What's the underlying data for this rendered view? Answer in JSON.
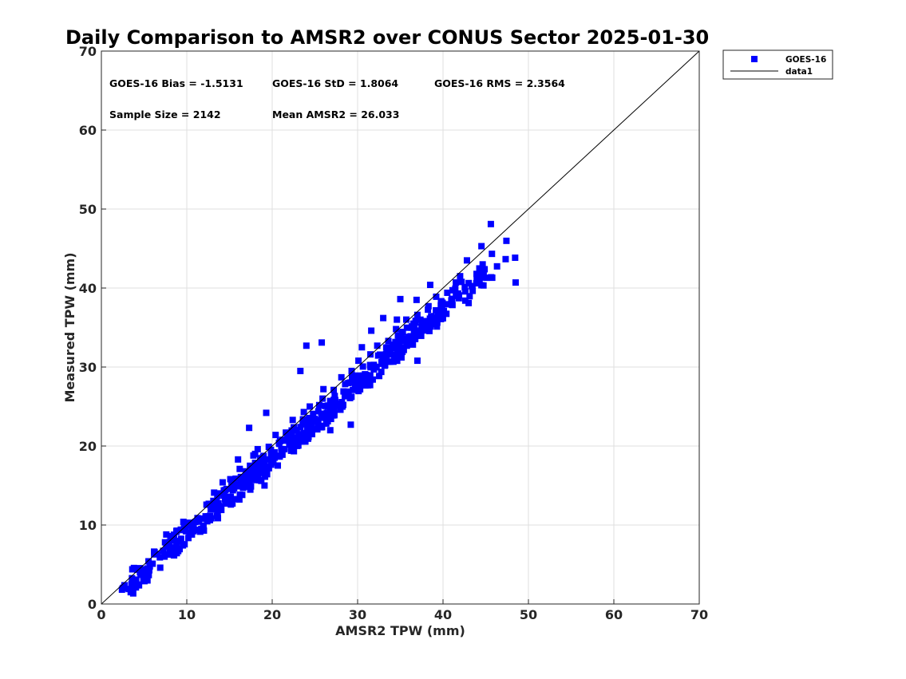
{
  "chart_data": {
    "type": "scatter",
    "title": "Daily Comparison to AMSR2 over CONUS Sector 2025-01-30",
    "xlabel": "AMSR2 TPW (mm)",
    "ylabel": "Measured TPW (mm)",
    "xlim": [
      0,
      70
    ],
    "ylim": [
      0,
      70
    ],
    "xticks": [
      "0",
      "10",
      "20",
      "30",
      "40",
      "50",
      "60",
      "70"
    ],
    "yticks": [
      "0",
      "10",
      "20",
      "30",
      "40",
      "50",
      "60",
      "70"
    ],
    "grid": true,
    "legend_position": "outside-top-right",
    "stats": [
      "GOES-16 Bias = -1.5131",
      "GOES-16 StD = 1.8064",
      "GOES-16 RMS = 2.3564",
      "Sample Size = 2142",
      "Mean AMSR2 = 26.033"
    ],
    "series": [
      {
        "name": "GOES-16",
        "kind": "scatter",
        "marker": "square",
        "color": "#0000ff",
        "points": [
          [
            2.5,
            2.0
          ],
          [
            3.2,
            1.9
          ],
          [
            3.7,
            1.9
          ],
          [
            3.8,
            2.7
          ],
          [
            4.6,
            3.7
          ],
          [
            5.0,
            3.9
          ],
          [
            5.4,
            4.5
          ],
          [
            6.0,
            5.1
          ],
          [
            5.3,
            3.6
          ],
          [
            7.4,
            6.0
          ],
          [
            7.6,
            8.8
          ],
          [
            8.1,
            8.5
          ],
          [
            8.0,
            6.6
          ],
          [
            8.5,
            7.0
          ],
          [
            8.8,
            7.5
          ],
          [
            9.3,
            8.0
          ],
          [
            9.0,
            6.7
          ],
          [
            9.6,
            10.4
          ],
          [
            10.3,
            9.0
          ],
          [
            10.8,
            10.1
          ],
          [
            11.3,
            10.5
          ],
          [
            11.7,
            9.5
          ],
          [
            12.2,
            11.1
          ],
          [
            12.8,
            12.0
          ],
          [
            13.0,
            12.3
          ],
          [
            13.2,
            14.1
          ],
          [
            13.5,
            13.0
          ],
          [
            14.0,
            12.4
          ],
          [
            14.2,
            15.4
          ],
          [
            14.6,
            13.3
          ],
          [
            15.1,
            15.8
          ],
          [
            15.4,
            14.4
          ],
          [
            15.9,
            14.9
          ],
          [
            16.2,
            17.1
          ],
          [
            16.0,
            18.3
          ],
          [
            16.6,
            15.4
          ],
          [
            17.1,
            16.0
          ],
          [
            17.4,
            17.5
          ],
          [
            17.8,
            18.8
          ],
          [
            18.3,
            19.6
          ],
          [
            18.1,
            15.8
          ],
          [
            18.8,
            16.6
          ],
          [
            19.2,
            17.3
          ],
          [
            19.6,
            19.9
          ],
          [
            20.1,
            18.5
          ],
          [
            20.4,
            21.4
          ],
          [
            20.8,
            20.4
          ],
          [
            21.2,
            18.9
          ],
          [
            21.6,
            21.7
          ],
          [
            22.0,
            20.2
          ],
          [
            22.4,
            23.3
          ],
          [
            22.9,
            20.9
          ],
          [
            23.3,
            22.4
          ],
          [
            23.7,
            24.3
          ],
          [
            24.1,
            21.9
          ],
          [
            24.4,
            25.0
          ],
          [
            25.0,
            23.1
          ],
          [
            25.4,
            24.4
          ],
          [
            25.9,
            26.0
          ],
          [
            26.3,
            23.8
          ],
          [
            26.8,
            22.0
          ],
          [
            27.2,
            27.1
          ],
          [
            27.6,
            25.3
          ],
          [
            28.1,
            28.7
          ],
          [
            28.5,
            26.3
          ],
          [
            28.9,
            26.5
          ],
          [
            29.3,
            29.5
          ],
          [
            29.7,
            27.4
          ],
          [
            30.1,
            30.8
          ],
          [
            30.6,
            28.5
          ],
          [
            31.0,
            29.0
          ],
          [
            31.5,
            31.6
          ],
          [
            31.9,
            29.7
          ],
          [
            32.3,
            32.7
          ],
          [
            32.8,
            30.6
          ],
          [
            33.2,
            31.0
          ],
          [
            33.6,
            33.3
          ],
          [
            34.0,
            31.6
          ],
          [
            34.5,
            34.8
          ],
          [
            34.9,
            32.3
          ],
          [
            35.3,
            33.3
          ],
          [
            35.7,
            36.0
          ],
          [
            36.2,
            33.9
          ],
          [
            36.6,
            34.2
          ],
          [
            37.0,
            36.6
          ],
          [
            37.5,
            35.0
          ],
          [
            37.9,
            35.4
          ],
          [
            38.3,
            37.7
          ],
          [
            38.7,
            36.2
          ],
          [
            39.2,
            38.9
          ],
          [
            39.6,
            36.7
          ],
          [
            40.1,
            37.1
          ],
          [
            40.5,
            39.4
          ],
          [
            41.0,
            37.9
          ],
          [
            41.5,
            40.7
          ],
          [
            42.0,
            41.5
          ],
          [
            42.8,
            43.5
          ],
          [
            43.9,
            40.6
          ],
          [
            44.5,
            45.3
          ],
          [
            45.1,
            41.3
          ],
          [
            45.6,
            48.1
          ],
          [
            48.5,
            40.7
          ],
          [
            43.0,
            38.1
          ],
          [
            24.0,
            32.7
          ],
          [
            25.8,
            33.1
          ],
          [
            23.3,
            29.5
          ],
          [
            33.0,
            36.2
          ],
          [
            31.6,
            34.6
          ],
          [
            35.0,
            38.6
          ],
          [
            37.0,
            30.8
          ],
          [
            38.5,
            40.4
          ],
          [
            29.2,
            22.7
          ],
          [
            27.0,
            24.2
          ],
          [
            22.2,
            19.8
          ],
          [
            19.3,
            24.2
          ],
          [
            19.1,
            15.0
          ],
          [
            17.3,
            22.3
          ],
          [
            18.0,
            19.0
          ],
          [
            26.0,
            27.2
          ],
          [
            30.5,
            32.5
          ],
          [
            34.6,
            36.0
          ],
          [
            36.9,
            38.5
          ]
        ]
      },
      {
        "name": "data1",
        "kind": "line",
        "color": "#000000",
        "points": [
          [
            0,
            0
          ],
          [
            70,
            70
          ]
        ]
      }
    ]
  }
}
